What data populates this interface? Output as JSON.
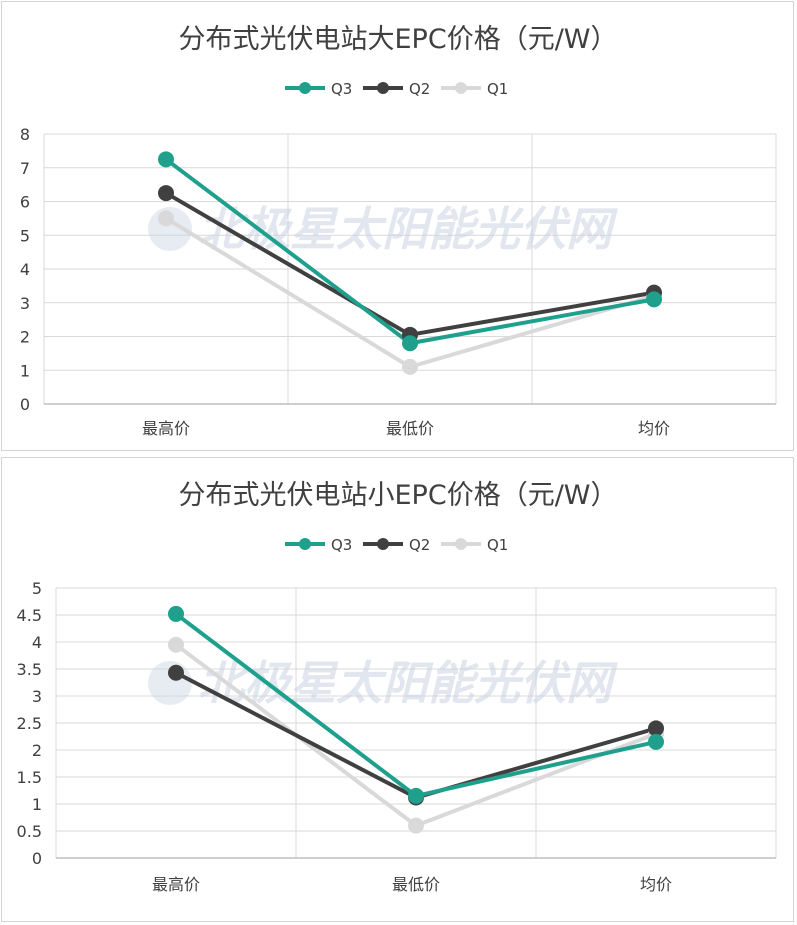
{
  "colors": {
    "Q3": "#1fa08d",
    "Q2": "#404040",
    "Q1": "#d9d9d9",
    "grid": "#d9d9d9",
    "axis": "#bfbfbf"
  },
  "watermark": "北极星太阳能光伏网",
  "chart_data": [
    {
      "type": "line",
      "title": "分布式光伏电站大EPC价格（元/W）",
      "categories": [
        "最高价",
        "最低价",
        "均价"
      ],
      "ylim": [
        0,
        8
      ],
      "yticks": [
        "0",
        "1",
        "2",
        "3",
        "4",
        "5",
        "6",
        "7",
        "8"
      ],
      "legend_position": "top",
      "grid": true,
      "series": [
        {
          "name": "Q3",
          "color": "#1fa08d",
          "values": [
            7.25,
            1.8,
            3.1
          ]
        },
        {
          "name": "Q2",
          "color": "#404040",
          "values": [
            6.25,
            2.05,
            3.3
          ]
        },
        {
          "name": "Q1",
          "color": "#d9d9d9",
          "values": [
            5.5,
            1.1,
            3.2
          ]
        }
      ]
    },
    {
      "type": "line",
      "title": "分布式光伏电站小EPC价格（元/W）",
      "categories": [
        "最高价",
        "最低价",
        "均价"
      ],
      "ylim": [
        0,
        5
      ],
      "yticks": [
        "0",
        "0.5",
        "1",
        "1.5",
        "2",
        "2.5",
        "3",
        "3.5",
        "4",
        "4.5",
        "5"
      ],
      "legend_position": "top",
      "grid": true,
      "series": [
        {
          "name": "Q3",
          "color": "#1fa08d",
          "values": [
            4.52,
            1.15,
            2.15
          ]
        },
        {
          "name": "Q2",
          "color": "#404040",
          "values": [
            3.43,
            1.12,
            2.4
          ]
        },
        {
          "name": "Q1",
          "color": "#d9d9d9",
          "values": [
            3.95,
            0.6,
            2.3
          ]
        }
      ]
    }
  ]
}
